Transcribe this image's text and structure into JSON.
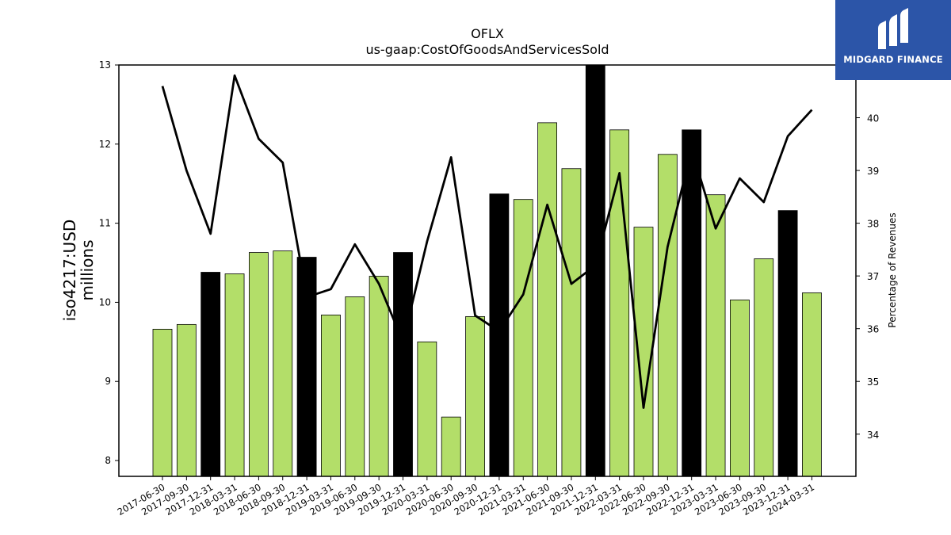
{
  "chart_data": {
    "type": "bar",
    "title": "OFLX",
    "subtitle": "us-gaap:CostOfGoodsAndServicesSold",
    "ylabel": "iso4217:USD\nmillions",
    "y2label": "Percentage of Revenues",
    "ylim": [
      7.8,
      13.0
    ],
    "y2lim": [
      33.2,
      41.0
    ],
    "yticks": [
      8,
      9,
      10,
      11,
      12,
      13
    ],
    "y2ticks": [
      34,
      35,
      36,
      37,
      38,
      39,
      40
    ],
    "categories": [
      "2017-06-30",
      "2017-09-30",
      "2017-12-31",
      "2018-03-31",
      "2018-06-30",
      "2018-09-30",
      "2018-12-31",
      "2019-03-31",
      "2019-06-30",
      "2019-09-30",
      "2019-12-31",
      "2020-03-31",
      "2020-06-30",
      "2020-09-30",
      "2020-12-31",
      "2021-03-31",
      "2021-06-30",
      "2021-09-30",
      "2021-12-31",
      "2022-03-31",
      "2022-06-30",
      "2022-09-30",
      "2022-12-31",
      "2023-03-31",
      "2023-06-30",
      "2023-09-30",
      "2023-12-31",
      "2024-03-31"
    ],
    "series": [
      {
        "type": "bar",
        "axis": "left",
        "values": [
          9.66,
          9.72,
          10.38,
          10.36,
          10.63,
          10.65,
          10.57,
          9.84,
          10.07,
          10.33,
          10.63,
          9.5,
          8.55,
          9.82,
          11.37,
          11.3,
          12.27,
          11.69,
          13.0,
          12.18,
          10.95,
          11.87,
          12.18,
          11.36,
          10.03,
          10.55,
          11.16,
          10.12
        ],
        "highlight": [
          false,
          false,
          true,
          false,
          false,
          false,
          true,
          false,
          false,
          false,
          true,
          false,
          false,
          false,
          true,
          false,
          false,
          false,
          true,
          false,
          false,
          false,
          true,
          false,
          false,
          false,
          true,
          false
        ]
      },
      {
        "type": "line",
        "axis": "right",
        "values": [
          40.6,
          39.0,
          37.8,
          40.8,
          39.6,
          39.15,
          36.6,
          36.75,
          37.6,
          36.85,
          35.75,
          37.65,
          39.25,
          36.25,
          35.95,
          36.65,
          38.35,
          36.85,
          37.2,
          38.95,
          34.5,
          37.55,
          39.4,
          37.9,
          38.85,
          38.4,
          39.65,
          40.15
        ]
      }
    ],
    "colors": {
      "bar": "#b3de69",
      "bar_highlight": "#000000",
      "line": "#000000"
    }
  },
  "logo": {
    "text": "MIDGARD FINANCE"
  }
}
